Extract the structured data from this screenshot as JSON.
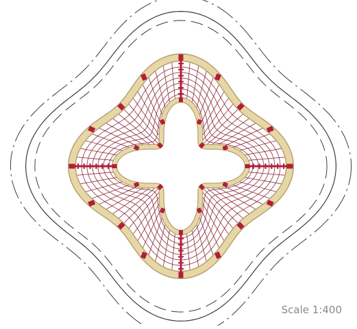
{
  "scale_label": "Scale 1:400",
  "colors": {
    "background": "#ffffff",
    "site_outline": "#3a3a3a",
    "timber_ring": "#e7d7a7",
    "timber_edge": "#b8a070",
    "net": "#8a2a3a",
    "joint": "#b01e3a",
    "radial_beam": "#b01e3a"
  }
}
